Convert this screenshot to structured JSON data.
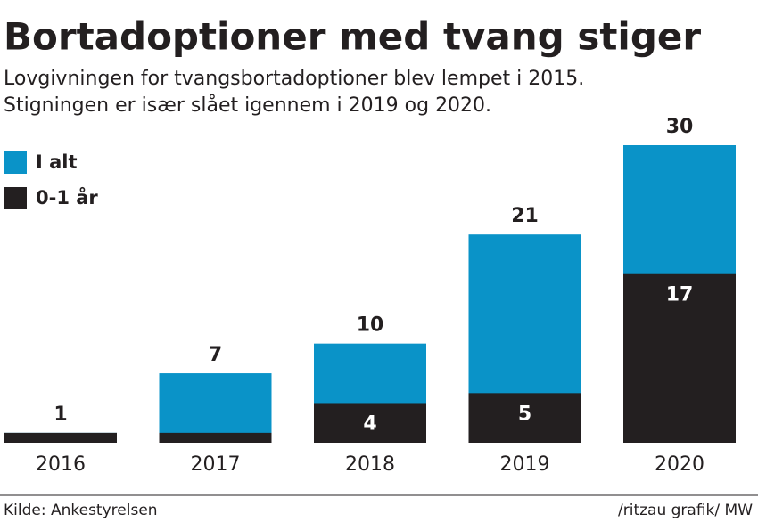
{
  "chart_data": {
    "type": "bar",
    "title": "Bortadoptioner med tvang stiger",
    "subtitle": [
      "Lovgivningen for tvangsbortadoptioner blev lempet i 2015.",
      "Stigningen er især slået igennem i 2019 og 2020."
    ],
    "categories": [
      "2016",
      "2017",
      "2018",
      "2019",
      "2020"
    ],
    "series": [
      {
        "name": "I alt",
        "color": "#0a93c8",
        "values": [
          1,
          7,
          10,
          21,
          30
        ]
      },
      {
        "name": "0-1 år",
        "color": "#231f20",
        "values": [
          1,
          1,
          4,
          5,
          17
        ]
      }
    ],
    "ylim": [
      0,
      30
    ],
    "source": "Kilde: Ankestyrelsen",
    "credit": "/ritzau grafik/ MW"
  }
}
